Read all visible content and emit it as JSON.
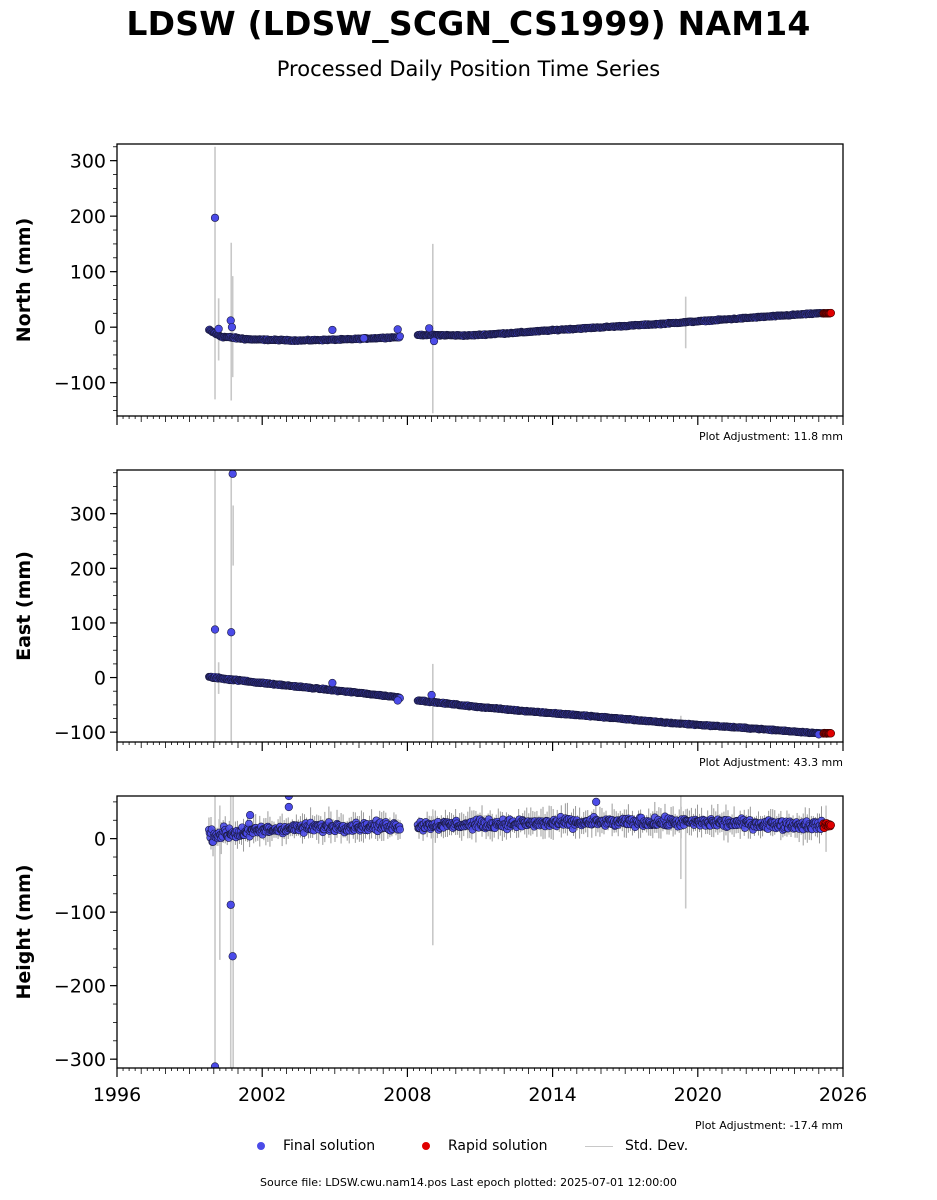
{
  "header": {
    "title": "LDSW (LDSW_SCGN_CS1999) NAM14",
    "subtitle": "Processed Daily Position Time Series"
  },
  "legend": {
    "final": "Final solution",
    "rapid": "Rapid solution",
    "std": "Std. Dev."
  },
  "footer": {
    "source": "Source file: LDSW.cwu.nam14.pos  Last epoch plotted: 2025-07-01 12:00:00"
  },
  "colors": {
    "final": "#4b4be8",
    "rapid": "#e00000",
    "std": "#c8c8c8",
    "edge": "#1a1a40"
  },
  "chart_data": [
    {
      "type": "scatter",
      "ylabel": "North (mm)",
      "adjustment": "Plot Adjustment: 11.8 mm",
      "xlim": [
        1996,
        2026
      ],
      "ylim": [
        -160,
        330
      ],
      "yticks": [
        -100,
        0,
        100,
        200,
        300
      ],
      "ytick_labels": [
        "−100",
        "0",
        "100",
        "200",
        "300"
      ],
      "xticks": [
        1996,
        2002,
        2008,
        2014,
        2020,
        2026
      ],
      "trend": [
        [
          1999.8,
          -5
        ],
        [
          2000.3,
          -17
        ],
        [
          2001.5,
          -22
        ],
        [
          2003.5,
          -24
        ],
        [
          2005.5,
          -22
        ],
        [
          2007.6,
          -18
        ],
        [
          2008.5,
          -14
        ],
        [
          2010.5,
          -15
        ],
        [
          2012.5,
          -10
        ],
        [
          2014.5,
          -4
        ],
        [
          2016.5,
          1
        ],
        [
          2018.5,
          6
        ],
        [
          2020.5,
          12
        ],
        [
          2022.5,
          18
        ],
        [
          2025.0,
          25
        ]
      ],
      "gaps": [
        [
          2007.7,
          2008.4
        ]
      ],
      "final_span": [
        1999.8,
        2025.2
      ],
      "rapid_span": [
        2025.2,
        2025.5
      ],
      "outliers": [
        [
          2000.05,
          197
        ],
        [
          2000.7,
          12
        ],
        [
          2000.75,
          0
        ],
        [
          2000.2,
          -3
        ],
        [
          2004.9,
          -5
        ],
        [
          2006.2,
          -20
        ],
        [
          2007.6,
          -4
        ],
        [
          2009.1,
          -25
        ],
        [
          2008.9,
          -2
        ]
      ],
      "std_spikes": [
        [
          2000.05,
          -130,
          325
        ],
        [
          2000.2,
          -60,
          52
        ],
        [
          2000.72,
          -132,
          152
        ],
        [
          2000.78,
          -90,
          92
        ],
        [
          2009.05,
          -155,
          150
        ],
        [
          2019.5,
          -38,
          55
        ]
      ]
    },
    {
      "type": "scatter",
      "ylabel": "East (mm)",
      "adjustment": "Plot Adjustment: 43.3 mm",
      "xlim": [
        1996,
        2026
      ],
      "ylim": [
        -118,
        380
      ],
      "yticks": [
        -100,
        0,
        100,
        200,
        300
      ],
      "ytick_labels": [
        "−100",
        "0",
        "100",
        "200",
        "300"
      ],
      "xticks": [
        1996,
        2002,
        2008,
        2014,
        2020,
        2026
      ],
      "trend": [
        [
          1999.8,
          1
        ],
        [
          2002.0,
          -10
        ],
        [
          2004.0,
          -19
        ],
        [
          2006.0,
          -28
        ],
        [
          2007.6,
          -36
        ],
        [
          2008.5,
          -42
        ],
        [
          2010.5,
          -52
        ],
        [
          2012.5,
          -60
        ],
        [
          2014.5,
          -67
        ],
        [
          2016.5,
          -74
        ],
        [
          2018.5,
          -82
        ],
        [
          2020.5,
          -88
        ],
        [
          2022.5,
          -94
        ],
        [
          2025.0,
          -102
        ]
      ],
      "gaps": [
        [
          2007.7,
          2008.4
        ]
      ],
      "final_span": [
        1999.8,
        2025.2
      ],
      "rapid_span": [
        2025.2,
        2025.5
      ],
      "outliers": [
        [
          2000.05,
          88
        ],
        [
          2000.72,
          83
        ],
        [
          2000.78,
          373
        ],
        [
          2004.9,
          -10
        ],
        [
          2009.0,
          -32
        ],
        [
          2007.6,
          -42
        ],
        [
          2025.0,
          -104
        ]
      ],
      "std_spikes": [
        [
          2000.05,
          -118,
          380
        ],
        [
          2000.2,
          -30,
          28
        ],
        [
          2000.72,
          -118,
          380
        ],
        [
          2000.8,
          205,
          315
        ],
        [
          2009.05,
          -118,
          25
        ],
        [
          2019.3,
          -92,
          -70
        ]
      ]
    },
    {
      "type": "scatter",
      "ylabel": "Height (mm)",
      "adjustment": "Plot Adjustment: -17.4 mm",
      "xlim": [
        1996,
        2026
      ],
      "ylim": [
        -312,
        58
      ],
      "yticks": [
        -300,
        -200,
        -100,
        0
      ],
      "ytick_labels": [
        "−300",
        "−200",
        "−100",
        "0"
      ],
      "xticks": [
        1996,
        2002,
        2008,
        2014,
        2020,
        2026
      ],
      "xtick_labels": [
        "1996",
        "2002",
        "2008",
        "2014",
        "2020",
        "2026"
      ],
      "trend": [
        [
          1999.8,
          5
        ],
        [
          2001.0,
          8
        ],
        [
          2003.0,
          14
        ],
        [
          2005.0,
          16
        ],
        [
          2007.6,
          17
        ],
        [
          2008.5,
          18
        ],
        [
          2012.0,
          20
        ],
        [
          2016.0,
          22
        ],
        [
          2020.0,
          22
        ],
        [
          2025.0,
          18
        ]
      ],
      "gaps": [
        [
          2007.7,
          2008.4
        ]
      ],
      "final_span": [
        1999.8,
        2025.2
      ],
      "rapid_span": [
        2025.2,
        2025.5
      ],
      "outliers": [
        [
          2000.05,
          -310
        ],
        [
          2000.7,
          -90
        ],
        [
          2000.78,
          -160
        ],
        [
          2003.1,
          43
        ],
        [
          2003.1,
          58
        ],
        [
          2001.5,
          32
        ],
        [
          2015.8,
          50
        ]
      ],
      "std_spikes": [
        [
          2000.05,
          -312,
          58
        ],
        [
          2000.25,
          -165,
          45
        ],
        [
          2000.7,
          -312,
          58
        ],
        [
          2000.8,
          -312,
          58
        ],
        [
          2009.05,
          -145,
          40
        ],
        [
          2019.3,
          -55,
          58
        ],
        [
          2019.5,
          -95,
          40
        ],
        [
          2025.3,
          -18,
          45
        ]
      ]
    }
  ]
}
